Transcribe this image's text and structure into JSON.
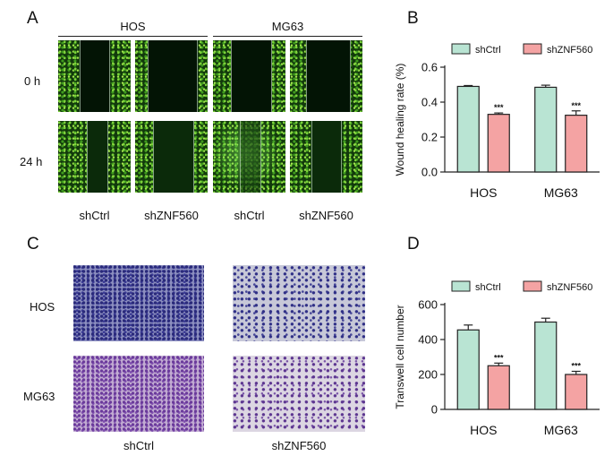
{
  "panel_a": {
    "letter": "A",
    "groups": [
      "HOS",
      "MG63"
    ],
    "rows": [
      "0 h",
      "24 h"
    ],
    "columns": [
      "shCtrl",
      "shZNF560",
      "shCtrl",
      "shZNF560"
    ]
  },
  "panel_c": {
    "letter": "C",
    "rows": [
      "HOS",
      "MG63"
    ],
    "columns": [
      "shCtrl",
      "shZNF560"
    ]
  },
  "colors": {
    "shCtrl": "#b9e4d3",
    "shZNF560": "#f4a3a3"
  },
  "chart_data": [
    {
      "panel": "B",
      "type": "bar",
      "categories": [
        "HOS",
        "MG63"
      ],
      "ylabel": "Wound healing rate (%)",
      "ylim": [
        0,
        0.6
      ],
      "yticks": [
        "0.0",
        "0.2",
        "0.4",
        "0.6"
      ],
      "legend_placement": "top",
      "series": [
        {
          "name": "shCtrl",
          "values": [
            0.49,
            0.485
          ],
          "errors": [
            0.005,
            0.012
          ],
          "sig": [
            "",
            ""
          ]
        },
        {
          "name": "shZNF560",
          "values": [
            0.33,
            0.325
          ],
          "errors": [
            0.008,
            0.025
          ],
          "sig": [
            "***",
            "***"
          ]
        }
      ]
    },
    {
      "panel": "D",
      "type": "bar",
      "categories": [
        "HOS",
        "MG63"
      ],
      "ylabel": "Transwell cell number",
      "ylim": [
        0,
        600
      ],
      "yticks": [
        "0",
        "200",
        "400",
        "600"
      ],
      "legend_placement": "top",
      "series": [
        {
          "name": "shCtrl",
          "values": [
            455,
            500
          ],
          "errors": [
            28,
            22
          ],
          "sig": [
            "",
            ""
          ]
        },
        {
          "name": "shZNF560",
          "values": [
            250,
            200
          ],
          "errors": [
            15,
            18
          ],
          "sig": [
            "***",
            "***"
          ]
        }
      ]
    }
  ]
}
